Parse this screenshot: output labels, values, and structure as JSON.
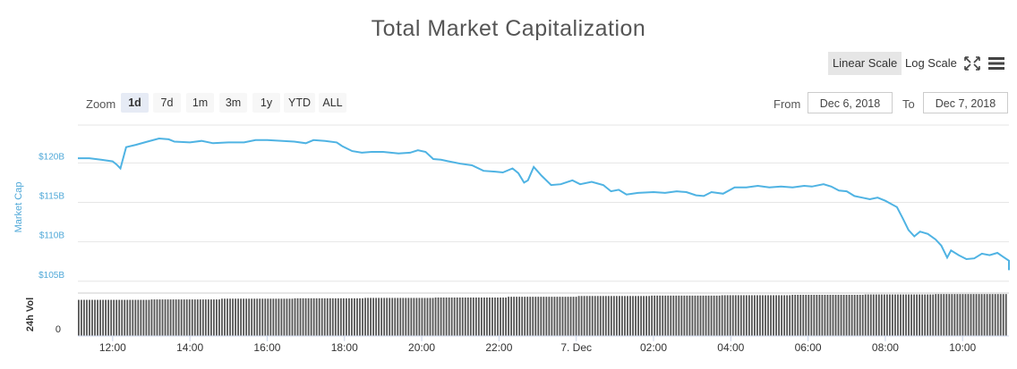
{
  "header": {
    "title": "Total Market Capitalization"
  },
  "toolbar": {
    "linear_label": "Linear Scale",
    "log_label": "Log Scale",
    "fullscreen_icon": "fullscreen-icon",
    "menu_icon": "menu-icon"
  },
  "zoom": {
    "label": "Zoom",
    "buttons": [
      "1d",
      "7d",
      "1m",
      "3m",
      "1y",
      "YTD",
      "ALL"
    ],
    "active": "1d"
  },
  "range": {
    "from_label": "From",
    "from_value": "Dec 6, 2018",
    "to_label": "To",
    "to_value": "Dec 7, 2018"
  },
  "colors": {
    "line": "#4fb3e3",
    "volume": "#555555",
    "axis_text": "#4fa8d8"
  },
  "chart_data": {
    "type": "line",
    "ylabel": "Market Cap",
    "y_ticks": [
      "$105B",
      "$110B",
      "$115B",
      "$120B"
    ],
    "y_tick_values": [
      105,
      110,
      115,
      120
    ],
    "ylim": [
      103.5,
      124.8
    ],
    "x_ticks": [
      "12:00",
      "14:00",
      "16:00",
      "18:00",
      "20:00",
      "22:00",
      "7. Dec",
      "02:00",
      "04:00",
      "06:00",
      "08:00",
      "10:00"
    ],
    "x_tick_hours": [
      12,
      14,
      16,
      18,
      20,
      22,
      24,
      26,
      28,
      30,
      32,
      34
    ],
    "xlim_hours": [
      11.1,
      35.2
    ],
    "grid": true,
    "series": [
      {
        "points": [
          [
            11.1,
            120.6
          ],
          [
            11.4,
            120.6
          ],
          [
            11.7,
            120.4
          ],
          [
            12.0,
            120.2
          ],
          [
            12.1,
            119.8
          ],
          [
            12.2,
            119.3
          ],
          [
            12.35,
            122.0
          ],
          [
            12.6,
            122.3
          ],
          [
            12.9,
            122.7
          ],
          [
            13.2,
            123.1
          ],
          [
            13.45,
            123.0
          ],
          [
            13.6,
            122.7
          ],
          [
            14.0,
            122.6
          ],
          [
            14.3,
            122.8
          ],
          [
            14.6,
            122.5
          ],
          [
            15.0,
            122.6
          ],
          [
            15.4,
            122.6
          ],
          [
            15.7,
            122.9
          ],
          [
            16.0,
            122.9
          ],
          [
            16.4,
            122.8
          ],
          [
            16.7,
            122.7
          ],
          [
            17.0,
            122.5
          ],
          [
            17.2,
            122.9
          ],
          [
            17.5,
            122.8
          ],
          [
            17.8,
            122.6
          ],
          [
            17.95,
            122.1
          ],
          [
            18.2,
            121.5
          ],
          [
            18.45,
            121.3
          ],
          [
            18.7,
            121.4
          ],
          [
            19.0,
            121.4
          ],
          [
            19.4,
            121.2
          ],
          [
            19.7,
            121.3
          ],
          [
            19.9,
            121.6
          ],
          [
            20.1,
            121.4
          ],
          [
            20.3,
            120.5
          ],
          [
            20.5,
            120.4
          ],
          [
            20.7,
            120.2
          ],
          [
            21.0,
            119.9
          ],
          [
            21.3,
            119.7
          ],
          [
            21.6,
            119.0
          ],
          [
            21.9,
            118.9
          ],
          [
            22.1,
            118.8
          ],
          [
            22.35,
            119.3
          ],
          [
            22.5,
            118.7
          ],
          [
            22.65,
            117.5
          ],
          [
            22.75,
            117.8
          ],
          [
            22.9,
            119.5
          ],
          [
            23.1,
            118.4
          ],
          [
            23.35,
            117.2
          ],
          [
            23.6,
            117.3
          ],
          [
            23.9,
            117.8
          ],
          [
            24.1,
            117.3
          ],
          [
            24.4,
            117.6
          ],
          [
            24.7,
            117.2
          ],
          [
            24.9,
            116.4
          ],
          [
            25.1,
            116.6
          ],
          [
            25.3,
            116.0
          ],
          [
            25.6,
            116.2
          ],
          [
            26.0,
            116.3
          ],
          [
            26.3,
            116.2
          ],
          [
            26.6,
            116.4
          ],
          [
            26.85,
            116.3
          ],
          [
            27.1,
            115.9
          ],
          [
            27.3,
            115.8
          ],
          [
            27.5,
            116.3
          ],
          [
            27.8,
            116.1
          ],
          [
            28.1,
            116.9
          ],
          [
            28.4,
            116.9
          ],
          [
            28.7,
            117.1
          ],
          [
            29.0,
            116.9
          ],
          [
            29.3,
            117.0
          ],
          [
            29.6,
            116.9
          ],
          [
            29.9,
            117.1
          ],
          [
            30.1,
            117.0
          ],
          [
            30.4,
            117.3
          ],
          [
            30.6,
            117.0
          ],
          [
            30.8,
            116.5
          ],
          [
            31.0,
            116.4
          ],
          [
            31.2,
            115.8
          ],
          [
            31.4,
            115.6
          ],
          [
            31.6,
            115.4
          ],
          [
            31.8,
            115.6
          ],
          [
            32.0,
            115.2
          ],
          [
            32.3,
            114.4
          ],
          [
            32.45,
            113.0
          ],
          [
            32.6,
            111.5
          ],
          [
            32.75,
            110.7
          ],
          [
            32.9,
            111.3
          ],
          [
            33.1,
            111.0
          ],
          [
            33.3,
            110.3
          ],
          [
            33.45,
            109.5
          ],
          [
            33.6,
            108.0
          ],
          [
            33.7,
            108.9
          ],
          [
            33.9,
            108.3
          ],
          [
            34.1,
            107.8
          ],
          [
            34.3,
            107.9
          ],
          [
            34.5,
            108.5
          ],
          [
            34.7,
            108.3
          ],
          [
            34.9,
            108.6
          ],
          [
            35.05,
            108.1
          ],
          [
            35.2,
            107.6
          ],
          [
            35.4,
            107.2
          ],
          [
            35.6,
            106.8
          ],
          [
            35.8,
            106.4
          ],
          [
            35.95,
            106.8
          ],
          [
            36.15,
            107.3
          ],
          [
            36.35,
            107.1
          ],
          [
            36.5,
            106.9
          ],
          [
            36.6,
            107.2
          ]
        ]
      }
    ],
    "volume": {
      "ylabel": "24h Vol",
      "y_ticks": [
        "0"
      ],
      "relative_heights": [
        0.82,
        0.83,
        0.85,
        0.86,
        0.87,
        0.88,
        0.9,
        0.92,
        0.93,
        0.94,
        0.95,
        0.96,
        0.97
      ]
    }
  }
}
